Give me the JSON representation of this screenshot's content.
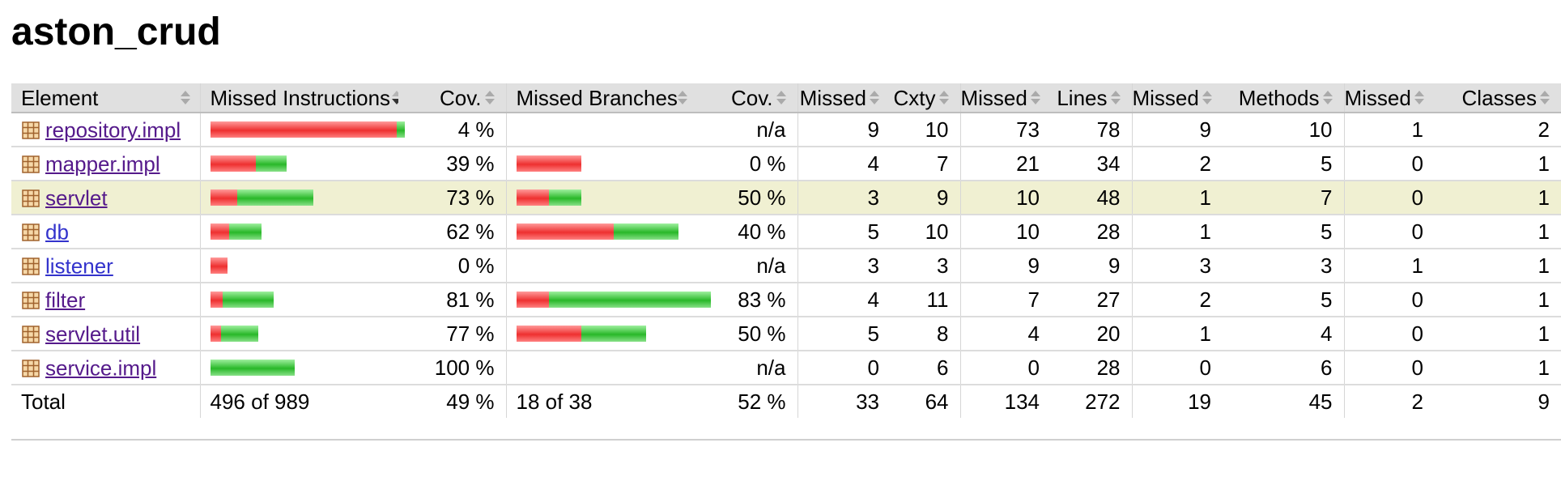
{
  "title": "aston_crud",
  "columns": [
    {
      "label": "Element",
      "sort": "none"
    },
    {
      "label": "Missed Instructions",
      "sort": "down"
    },
    {
      "label": "Cov.",
      "sort": "none"
    },
    {
      "label": "Missed Branches",
      "sort": "none"
    },
    {
      "label": "Cov.",
      "sort": "none"
    },
    {
      "label": "Missed",
      "sort": "none"
    },
    {
      "label": "Cxty",
      "sort": "none"
    },
    {
      "label": "Missed",
      "sort": "none"
    },
    {
      "label": "Lines",
      "sort": "none"
    },
    {
      "label": "Missed",
      "sort": "none"
    },
    {
      "label": "Methods",
      "sort": "none"
    },
    {
      "label": "Missed",
      "sort": "none"
    },
    {
      "label": "Classes",
      "sort": "none"
    }
  ],
  "rows": [
    {
      "name": "repository.impl",
      "visited": true,
      "instr_missed": 220,
      "instr_covered": 10,
      "instr_cov": "4 %",
      "br_missed": 0,
      "br_covered": 0,
      "br_cov": "n/a",
      "cx_missed": "9",
      "cx": "10",
      "ln_missed": "73",
      "ln": "78",
      "m_missed": "9",
      "m": "10",
      "c_missed": "1",
      "c": "2",
      "highlight": false
    },
    {
      "name": "mapper.impl",
      "visited": true,
      "instr_missed": 54,
      "instr_covered": 36,
      "instr_cov": "39 %",
      "br_missed": 80,
      "br_covered": 0,
      "br_cov": "0 %",
      "cx_missed": "4",
      "cx": "7",
      "ln_missed": "21",
      "ln": "34",
      "m_missed": "2",
      "m": "5",
      "c_missed": "0",
      "c": "1",
      "highlight": false
    },
    {
      "name": "servlet",
      "visited": true,
      "instr_missed": 32,
      "instr_covered": 90,
      "instr_cov": "73 %",
      "br_missed": 40,
      "br_covered": 40,
      "br_cov": "50 %",
      "cx_missed": "3",
      "cx": "9",
      "ln_missed": "10",
      "ln": "48",
      "m_missed": "1",
      "m": "7",
      "c_missed": "0",
      "c": "1",
      "highlight": true
    },
    {
      "name": "db",
      "visited": false,
      "instr_missed": 22,
      "instr_covered": 38,
      "instr_cov": "62 %",
      "br_missed": 120,
      "br_covered": 80,
      "br_cov": "40 %",
      "cx_missed": "5",
      "cx": "10",
      "ln_missed": "10",
      "ln": "28",
      "m_missed": "1",
      "m": "5",
      "c_missed": "0",
      "c": "1",
      "highlight": false
    },
    {
      "name": "listener",
      "visited": false,
      "instr_missed": 20,
      "instr_covered": 0,
      "instr_cov": "0 %",
      "br_missed": 0,
      "br_covered": 0,
      "br_cov": "n/a",
      "cx_missed": "3",
      "cx": "3",
      "ln_missed": "9",
      "ln": "9",
      "m_missed": "3",
      "m": "3",
      "c_missed": "1",
      "c": "1",
      "highlight": false
    },
    {
      "name": "filter",
      "visited": true,
      "instr_missed": 14,
      "instr_covered": 60,
      "instr_cov": "81 %",
      "br_missed": 40,
      "br_covered": 200,
      "br_cov": "83 %",
      "cx_missed": "4",
      "cx": "11",
      "ln_missed": "7",
      "ln": "27",
      "m_missed": "2",
      "m": "5",
      "c_missed": "0",
      "c": "1",
      "highlight": false
    },
    {
      "name": "servlet.util",
      "visited": true,
      "instr_missed": 12,
      "instr_covered": 44,
      "instr_cov": "77 %",
      "br_missed": 80,
      "br_covered": 80,
      "br_cov": "50 %",
      "cx_missed": "5",
      "cx": "8",
      "ln_missed": "4",
      "ln": "20",
      "m_missed": "1",
      "m": "4",
      "c_missed": "0",
      "c": "1",
      "highlight": false
    },
    {
      "name": "service.impl",
      "visited": true,
      "instr_missed": 0,
      "instr_covered": 100,
      "instr_cov": "100 %",
      "br_missed": 0,
      "br_covered": 0,
      "br_cov": "n/a",
      "cx_missed": "0",
      "cx": "6",
      "ln_missed": "0",
      "ln": "28",
      "m_missed": "0",
      "m": "6",
      "c_missed": "0",
      "c": "1",
      "highlight": false
    }
  ],
  "total": {
    "label": "Total",
    "instr": "496 of 989",
    "instr_cov": "49 %",
    "br": "18 of 38",
    "br_cov": "52 %",
    "cx_missed": "33",
    "cx": "64",
    "ln_missed": "134",
    "ln": "272",
    "m_missed": "19",
    "m": "45",
    "c_missed": "2",
    "c": "9"
  },
  "colors": {
    "missed": "#ee3030",
    "covered": "#29b829",
    "highlight": "#f0f0d2",
    "header": "#e0e0e0",
    "link": "#3333cc",
    "visited": "#551a8b"
  },
  "icons": {
    "package": "package-icon",
    "sort": "sort-arrows-icon"
  }
}
